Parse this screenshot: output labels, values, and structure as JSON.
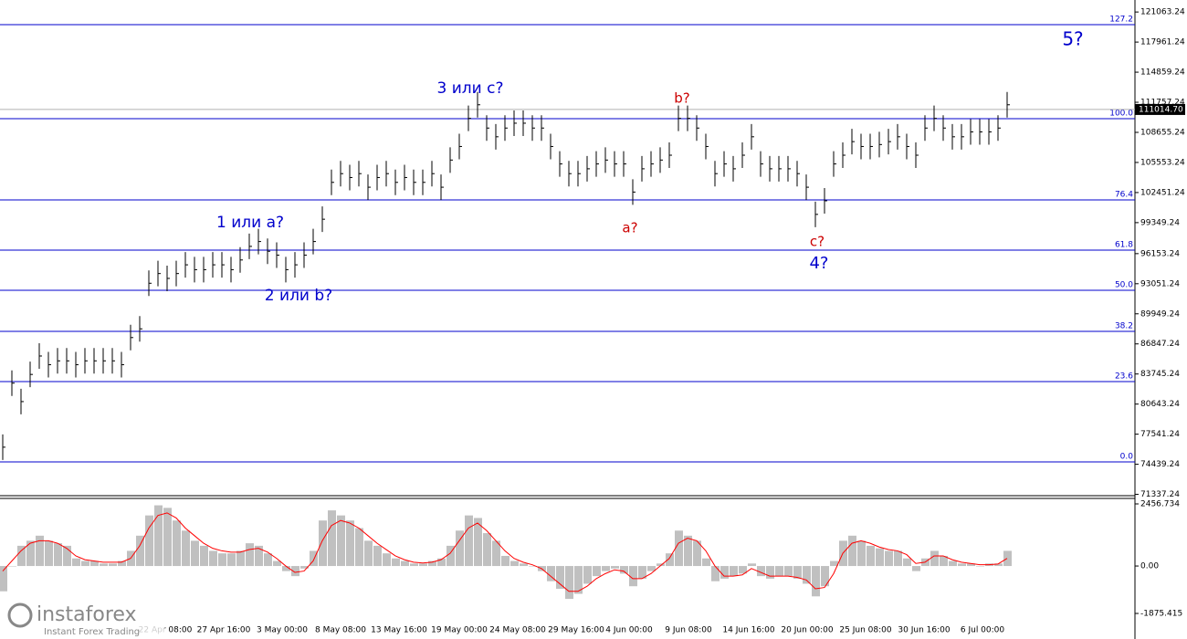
{
  "chart_data": {
    "type": "bar",
    "bar_color": "#000000",
    "level_color": "#0000cc",
    "ylim": [
      71200,
      122300
    ],
    "yticks": [
      121063.24,
      117961.24,
      114859.24,
      111757.24,
      108655.24,
      105553.24,
      102451.24,
      99349.24,
      96153.24,
      93051.24,
      89949.24,
      86847.24,
      83745.24,
      80643.24,
      77541.24,
      74439.24,
      71337.24
    ],
    "current_price": {
      "value": 111014.7,
      "label": "111014.70"
    },
    "x_labels": [
      "22 Apr 08:00",
      "27 Apr 16:00",
      "3 May 00:00",
      "8 May 08:00",
      "13 May 16:00",
      "19 May 00:00",
      "24 May 08:00",
      "29 May 16:00",
      "4 Jun 00:00",
      "9 Jun 08:00",
      "14 Jun 16:00",
      "20 Jun 00:00",
      "25 Jun 08:00",
      "30 Jun 16:00",
      "6 Jul 00:00"
    ],
    "values": [
      76200,
      82800,
      80900,
      83700,
      85600,
      84700,
      85100,
      85100,
      84700,
      85100,
      85100,
      85100,
      85100,
      84700,
      87500,
      88400,
      93100,
      94100,
      93600,
      94100,
      95000,
      94500,
      94500,
      95000,
      95000,
      94500,
      95500,
      96900,
      97400,
      96400,
      96000,
      94500,
      95000,
      96000,
      97400,
      99700,
      103500,
      104400,
      104000,
      104400,
      103000,
      104000,
      104400,
      103500,
      104000,
      103500,
      103500,
      104400,
      103000,
      105800,
      107200,
      110100,
      111500,
      109100,
      108200,
      109100,
      109600,
      109600,
      109100,
      109100,
      107200,
      105400,
      104400,
      104400,
      104900,
      105400,
      105800,
      105400,
      105400,
      102500,
      104900,
      105400,
      105800,
      106300,
      110100,
      110100,
      109100,
      107200,
      104400,
      105400,
      104900,
      106300,
      108200,
      105400,
      104900,
      104900,
      104900,
      104400,
      103000,
      100200,
      101600,
      105400,
      106300,
      107700,
      107200,
      107200,
      107400,
      107700,
      108200,
      107200,
      106300,
      109100,
      110100,
      109100,
      108200,
      108200,
      108700,
      108700,
      108700,
      109100,
      111500
    ],
    "levels": [
      {
        "label": "127.2",
        "price": 119759
      },
      {
        "label": "100.0",
        "price": 110067
      },
      {
        "label": "76.4",
        "price": 101692
      },
      {
        "label": "61.8",
        "price": 96517
      },
      {
        "label": "50.0",
        "price": 92376
      },
      {
        "label": "38.2",
        "price": 88142
      },
      {
        "label": "23.6",
        "price": 82966
      },
      {
        "label": "0.0",
        "price": 74685
      }
    ],
    "annotations": [
      {
        "text": "1 или a?",
        "color": "#0000cc"
      },
      {
        "text": "2 или b?",
        "color": "#0000cc"
      },
      {
        "text": "3 или c?",
        "color": "#0000cc"
      },
      {
        "text": "a?",
        "color": "#cc0000"
      },
      {
        "text": "b?",
        "color": "#cc0000"
      },
      {
        "text": "c?",
        "color": "#cc0000"
      },
      {
        "text": "4?",
        "color": "#0000cc"
      },
      {
        "text": "5?",
        "color": "#0000cc"
      }
    ],
    "indicator": {
      "ylim": [
        -2886,
        2673
      ],
      "yticks": [
        2456.734,
        {
          "value": 0,
          "label": "0.00"
        },
        -1875.415
      ],
      "histogram_color": "#c0c0c0",
      "signal_color": "#ff0000",
      "histogram": [
        -1000,
        0,
        800,
        1000,
        1200,
        1000,
        900,
        800,
        300,
        200,
        200,
        100,
        100,
        200,
        600,
        1200,
        2000,
        2400,
        2300,
        1800,
        1400,
        1000,
        800,
        600,
        500,
        500,
        600,
        900,
        800,
        500,
        200,
        -200,
        -400,
        -100,
        600,
        1800,
        2200,
        2000,
        1800,
        1500,
        1000,
        800,
        500,
        300,
        200,
        100,
        100,
        200,
        300,
        800,
        1400,
        2000,
        1900,
        1300,
        1000,
        400,
        200,
        100,
        0,
        -200,
        -600,
        -900,
        -1300,
        -1100,
        -700,
        -400,
        -200,
        -100,
        -300,
        -800,
        -500,
        -200,
        100,
        500,
        1400,
        1200,
        1000,
        300,
        -600,
        -500,
        -400,
        -300,
        100,
        -400,
        -500,
        -400,
        -400,
        -500,
        -700,
        -1200,
        -800,
        200,
        1000,
        1200,
        1000,
        800,
        700,
        600,
        600,
        300,
        -200,
        300,
        600,
        400,
        200,
        100,
        100,
        0,
        100,
        100,
        600
      ],
      "signal": [
        -200,
        200,
        600,
        900,
        1000,
        1000,
        900,
        700,
        400,
        250,
        200,
        150,
        150,
        150,
        300,
        800,
        1500,
        2000,
        2100,
        1900,
        1500,
        1200,
        900,
        700,
        600,
        550,
        550,
        650,
        700,
        550,
        300,
        0,
        -250,
        -200,
        200,
        1000,
        1600,
        1800,
        1700,
        1500,
        1200,
        900,
        650,
        400,
        250,
        150,
        120,
        150,
        250,
        500,
        1000,
        1500,
        1700,
        1400,
        1000,
        600,
        300,
        150,
        50,
        -100,
        -400,
        -700,
        -1000,
        -1000,
        -800,
        -500,
        -300,
        -150,
        -200,
        -500,
        -500,
        -300,
        0,
        300,
        900,
        1100,
        1000,
        600,
        0,
        -400,
        -400,
        -350,
        -100,
        -250,
        -400,
        -400,
        -400,
        -450,
        -550,
        -900,
        -850,
        -300,
        500,
        900,
        1000,
        900,
        750,
        650,
        600,
        450,
        100,
        150,
        400,
        400,
        250,
        150,
        100,
        50,
        50,
        80,
        300
      ]
    }
  },
  "branding": {
    "name": "instaforex",
    "tagline": "Instant Forex Trading"
  }
}
